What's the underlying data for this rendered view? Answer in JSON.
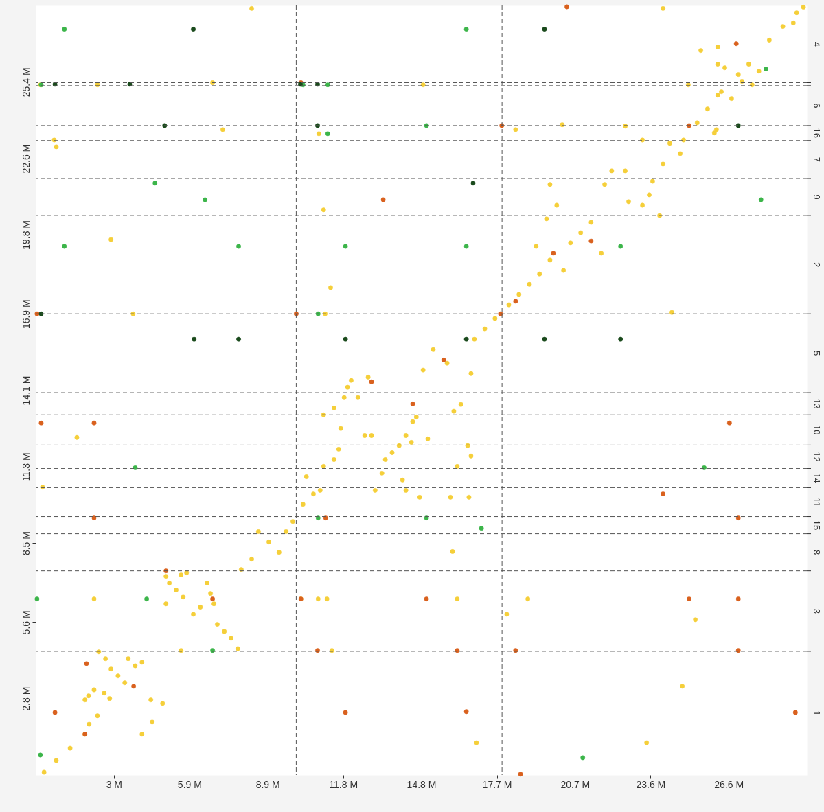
{
  "chart_data": {
    "type": "scatter",
    "marker": "circle",
    "grid": false,
    "xlim": [
      0,
      29.6
    ],
    "ylim": [
      0,
      28.2
    ],
    "xticks": [
      {
        "value": 3,
        "label": "3 M"
      },
      {
        "value": 5.9,
        "label": "5.9 M"
      },
      {
        "value": 8.9,
        "label": "8.9 M"
      },
      {
        "value": 11.8,
        "label": "11.8 M"
      },
      {
        "value": 14.8,
        "label": "14.8 M"
      },
      {
        "value": 17.7,
        "label": "17.7 M"
      },
      {
        "value": 20.7,
        "label": "20.7 M"
      },
      {
        "value": 23.6,
        "label": "23.6 M"
      },
      {
        "value": 26.6,
        "label": "26.6 M"
      }
    ],
    "yticks": [
      {
        "value": 2.8,
        "label": "2.8 M"
      },
      {
        "value": 5.6,
        "label": "5.6 M"
      },
      {
        "value": 8.5,
        "label": "8.5 M"
      },
      {
        "value": 11.3,
        "label": "11.3 M"
      },
      {
        "value": 14.1,
        "label": "14.1 M"
      },
      {
        "value": 16.9,
        "label": "16.9 M"
      },
      {
        "value": 19.8,
        "label": "19.8 M"
      },
      {
        "value": 22.6,
        "label": "22.6 M"
      },
      {
        "value": 25.4,
        "label": "25.4 M"
      }
    ],
    "annotations": [
      "1",
      "3",
      "8",
      "15",
      "11",
      "14",
      "12",
      "10",
      "13",
      "5",
      "2",
      "9",
      "7",
      "16",
      "6",
      "4"
    ],
    "ref_lines": [
      {
        "axis": "x",
        "value": 10.0,
        "color": "#555555",
        "line_style": "dashed"
      },
      {
        "axis": "x",
        "value": 17.9,
        "color": "#555555",
        "line_style": "dashed"
      },
      {
        "axis": "x",
        "value": 25.08,
        "color": "#555555",
        "line_style": "dashed"
      },
      {
        "axis": "y",
        "value": 4.53,
        "color": "#555555",
        "line_style": "dashed"
      },
      {
        "axis": "y",
        "value": 7.48,
        "color": "#555555",
        "line_style": "dashed"
      },
      {
        "axis": "y",
        "value": 8.84,
        "color": "#555555",
        "line_style": "dashed"
      },
      {
        "axis": "y",
        "value": 9.47,
        "color": "#555555",
        "line_style": "dashed"
      },
      {
        "axis": "y",
        "value": 10.53,
        "color": "#555555",
        "line_style": "dashed"
      },
      {
        "axis": "y",
        "value": 11.23,
        "color": "#555555",
        "line_style": "dashed"
      },
      {
        "axis": "y",
        "value": 12.09,
        "color": "#555555",
        "line_style": "dashed"
      },
      {
        "axis": "y",
        "value": 13.2,
        "color": "#555555",
        "line_style": "dashed"
      },
      {
        "axis": "y",
        "value": 14.01,
        "color": "#555555",
        "line_style": "dashed"
      },
      {
        "axis": "y",
        "value": 16.9,
        "color": "#555555",
        "line_style": "dashed"
      },
      {
        "axis": "y",
        "value": 20.5,
        "color": "#555555",
        "line_style": "dashed"
      },
      {
        "axis": "y",
        "value": 21.86,
        "color": "#555555",
        "line_style": "dashed"
      },
      {
        "axis": "y",
        "value": 23.25,
        "color": "#555555",
        "line_style": "dashed"
      },
      {
        "axis": "y",
        "value": 23.8,
        "color": "#555555",
        "line_style": "dashed"
      },
      {
        "axis": "y",
        "value": 25.26,
        "color": "#555555",
        "line_style": "dashed"
      },
      {
        "axis": "y",
        "value": 25.37,
        "color": "#555555",
        "line_style": "dashed"
      }
    ],
    "series": [
      {
        "color": "#f5cf3a",
        "x": [
          0.32,
          0.79,
          1.32,
          1.89,
          2.05,
          2.37,
          1.89,
          2.03,
          2.24,
          2.42,
          2.68,
          2.89,
          3.16,
          3.42,
          3.55,
          3.82,
          4.08,
          2.63,
          2.84,
          4.08,
          4.47,
          4.87,
          4.42,
          5.0,
          5.13,
          5.39,
          5.58,
          5.79,
          5.66,
          6.05,
          6.32,
          6.58,
          6.71,
          6.84,
          6.97,
          7.24,
          7.5,
          7.76,
          5.58,
          5.0,
          7.89,
          8.29,
          8.55,
          8.95,
          9.34,
          9.61,
          9.87,
          10.26,
          10.66,
          10.39,
          10.92,
          11.05,
          11.45,
          11.63,
          11.71,
          11.05,
          11.45,
          11.84,
          11.97,
          12.37,
          12.11,
          12.76,
          12.63,
          12.89,
          13.03,
          13.29,
          13.42,
          13.68,
          13.95,
          14.21,
          14.47,
          14.61,
          14.08,
          14.21,
          14.74,
          14.42,
          15.05,
          14.87,
          15.26,
          15.79,
          16.71,
          16.05,
          16.32,
          16.58,
          16.71,
          16.63,
          16.18,
          16.84,
          17.24,
          17.63,
          18.16,
          18.55,
          18.95,
          19.34,
          19.21,
          19.74,
          20.26,
          19.61,
          20.0,
          19.74,
          20.53,
          20.92,
          21.32,
          21.71,
          21.84,
          22.11,
          22.63,
          22.76,
          23.29,
          23.55,
          23.95,
          23.68,
          24.08,
          24.34,
          24.87,
          24.74,
          23.29,
          22.63,
          25.39,
          25.79,
          26.18,
          26.05,
          25.53,
          26.18,
          26.18,
          26.45,
          26.32,
          26.71,
          26.97,
          27.11,
          27.37,
          27.5,
          27.76,
          28.16,
          28.68,
          29.21,
          29.47,
          29.08,
          8.29,
          6.79,
          7.18,
          0.71,
          0.79,
          2.89,
          3.74,
          0.26,
          1.58,
          2.24,
          10.18,
          10.84,
          11.18,
          11.37,
          11.05,
          11.32,
          11.11,
          10.87,
          14.87,
          16.18,
          16.0,
          16.92,
          18.08,
          18.42,
          18.89,
          20.21,
          24.08,
          24.42,
          24.82,
          23.45,
          25.32,
          25.05,
          26.13,
          0.18,
          2.37,
          15.92
        ],
        "values": [
          0.1,
          0.53,
          0.98,
          1.49,
          1.86,
          2.17,
          2.75,
          2.9,
          3.12,
          4.51,
          4.26,
          3.88,
          3.63,
          3.38,
          4.26,
          4.0,
          4.13,
          3.0,
          2.8,
          1.49,
          1.94,
          2.62,
          2.75,
          7.28,
          7.03,
          6.78,
          7.33,
          7.41,
          6.52,
          5.89,
          6.15,
          7.03,
          6.65,
          6.27,
          5.52,
          5.26,
          5.01,
          4.63,
          4.56,
          6.27,
          7.53,
          7.91,
          8.92,
          8.54,
          8.16,
          8.92,
          9.29,
          9.92,
          10.3,
          10.93,
          10.43,
          11.31,
          11.56,
          11.94,
          12.7,
          13.2,
          13.45,
          13.83,
          14.21,
          13.83,
          14.46,
          14.58,
          12.44,
          12.44,
          10.43,
          11.06,
          11.56,
          11.81,
          12.07,
          12.44,
          12.95,
          13.12,
          10.81,
          10.43,
          10.18,
          12.19,
          12.32,
          14.84,
          15.59,
          15.09,
          14.71,
          13.33,
          13.58,
          12.07,
          11.69,
          10.18,
          11.31,
          15.97,
          16.35,
          16.73,
          17.23,
          17.61,
          17.98,
          18.36,
          19.37,
          18.87,
          18.49,
          20.38,
          20.88,
          21.64,
          19.5,
          19.87,
          20.25,
          19.12,
          21.64,
          22.14,
          22.14,
          21.01,
          20.88,
          21.26,
          20.5,
          21.76,
          22.39,
          23.15,
          23.27,
          22.77,
          23.27,
          23.78,
          23.9,
          24.41,
          24.91,
          23.53,
          26.55,
          26.68,
          26.05,
          25.92,
          25.04,
          24.79,
          25.67,
          25.42,
          26.05,
          25.29,
          25.79,
          26.93,
          27.43,
          27.93,
          28.14,
          27.56,
          28.09,
          25.37,
          23.65,
          23.27,
          23.02,
          19.62,
          16.9,
          10.55,
          12.37,
          6.45,
          6.45,
          6.45,
          6.45,
          4.56,
          20.71,
          17.86,
          16.9,
          23.5,
          25.29,
          6.45,
          8.19,
          1.18,
          5.89,
          23.65,
          6.45,
          23.83,
          28.09,
          16.95,
          3.25,
          1.18,
          5.69,
          25.29,
          23.65,
          25.29,
          25.29,
          10.18
        ]
      },
      {
        "color": "#d9611e",
        "x": [
          20.39,
          17.89,
          18.42,
          17.84,
          19.87,
          21.32,
          13.34,
          15.66,
          12.89,
          14.47,
          0.21,
          2.24,
          2.24,
          5.0,
          6.79,
          10.18,
          15.0,
          10.82,
          16.18,
          18.42,
          1.95,
          3.76,
          0.74,
          1.89,
          11.89,
          16.53,
          18.61,
          29.16,
          26.97,
          26.97,
          25.08,
          26.97,
          26.63,
          24.08,
          26.89,
          25.08,
          10.0,
          0.05,
          10.18,
          11.13
        ],
        "values": [
          28.15,
          23.8,
          17.36,
          16.9,
          19.12,
          19.57,
          21.08,
          15.21,
          14.41,
          13.6,
          12.9,
          12.9,
          9.42,
          7.48,
          6.45,
          6.45,
          6.45,
          4.56,
          4.56,
          4.56,
          4.08,
          3.25,
          2.29,
          1.49,
          2.29,
          2.32,
          0.03,
          2.29,
          4.56,
          6.45,
          6.45,
          9.42,
          12.9,
          10.3,
          26.8,
          23.8,
          16.9,
          16.9,
          25.37,
          9.42
        ]
      },
      {
        "color": "#3cb54a",
        "x": [
          1.1,
          16.53,
          0.21,
          10.26,
          11.21,
          15.0,
          11.21,
          4.58,
          6.5,
          1.1,
          7.79,
          11.89,
          16.53,
          22.45,
          27.84,
          28.03,
          10.84,
          3.82,
          25.66,
          10.84,
          15.0,
          17.11,
          0.05,
          4.26,
          6.79,
          0.18,
          21.0
        ],
        "values": [
          27.33,
          27.33,
          25.29,
          25.29,
          25.29,
          23.8,
          23.5,
          21.69,
          21.08,
          19.37,
          19.37,
          19.37,
          19.37,
          19.37,
          21.08,
          25.87,
          16.9,
          11.26,
          11.26,
          9.42,
          9.42,
          9.04,
          6.45,
          6.45,
          4.56,
          0.73,
          0.63
        ]
      },
      {
        "color": "#1a4a1c",
        "x": [
          6.05,
          19.53,
          0.74,
          3.61,
          10.16,
          10.82,
          4.95,
          10.82,
          26.97,
          16.79,
          0.21,
          6.08,
          7.79,
          11.89,
          16.53,
          19.53,
          22.45
        ],
        "values": [
          27.33,
          27.33,
          25.31,
          25.31,
          25.31,
          25.31,
          23.8,
          23.8,
          23.8,
          21.69,
          16.9,
          15.97,
          15.97,
          15.97,
          15.97,
          15.97,
          15.97
        ]
      }
    ]
  }
}
